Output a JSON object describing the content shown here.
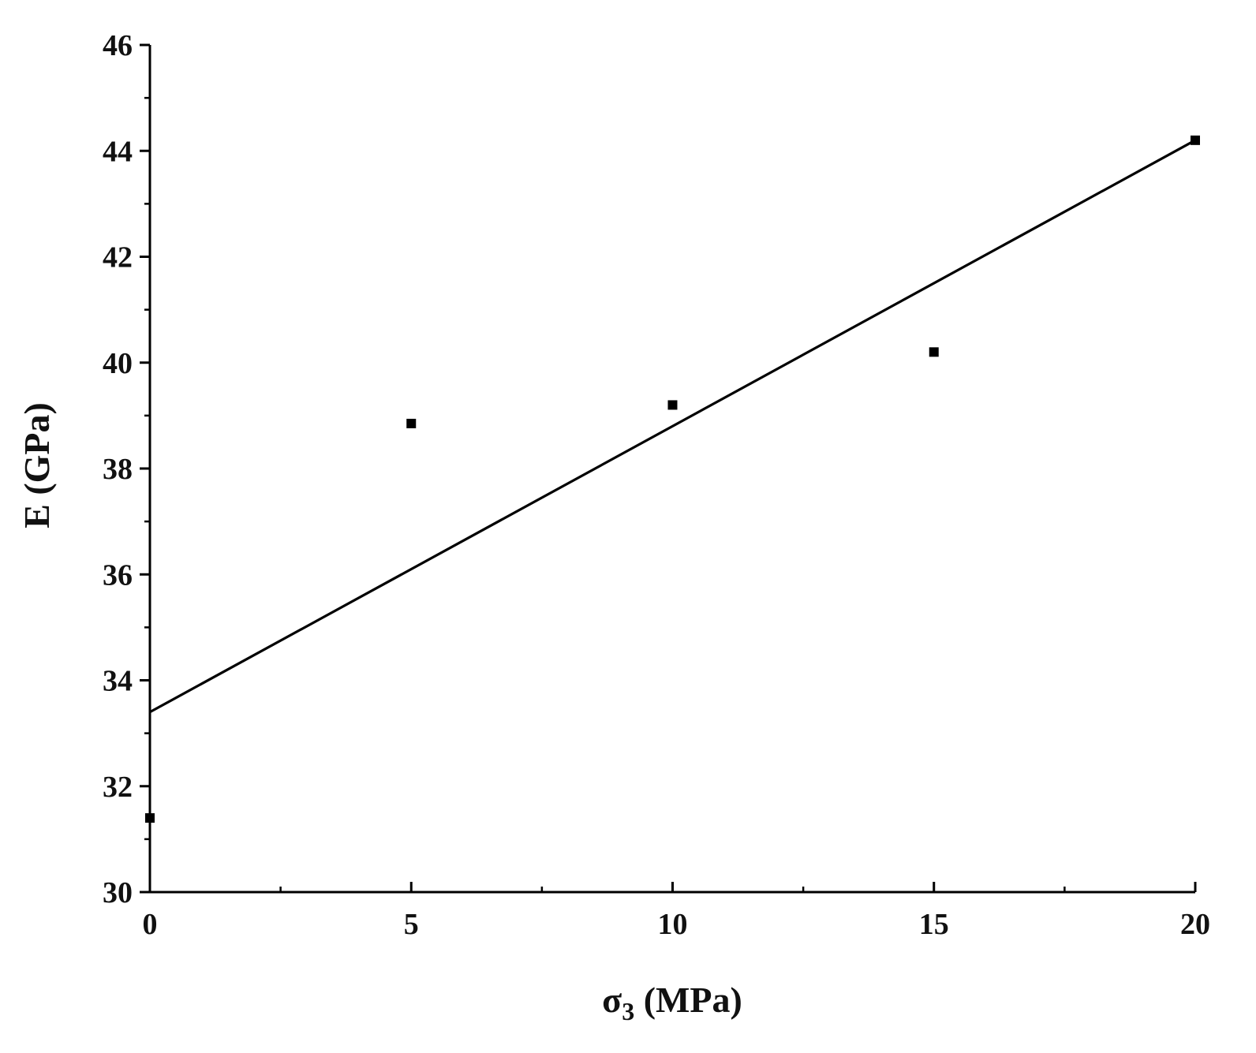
{
  "chart_data": {
    "type": "scatter",
    "title": "",
    "xlabel": {
      "symbol": "σ",
      "subscript": "3",
      "unit": " (MPa)"
    },
    "ylabel": "E (GPa)",
    "xlim": [
      0,
      20
    ],
    "ylim": [
      30,
      46
    ],
    "x_ticks": [
      0,
      5,
      10,
      15,
      20
    ],
    "y_ticks": [
      30,
      32,
      34,
      36,
      38,
      40,
      42,
      44,
      46
    ],
    "x_minor_ticks": [
      2.5,
      7.5,
      12.5,
      17.5
    ],
    "y_minor_ticks": [
      31,
      33,
      35,
      37,
      39,
      41,
      43,
      45
    ],
    "grid": false,
    "series": [
      {
        "points": [
          {
            "x": 0,
            "y": 31.4
          },
          {
            "x": 5,
            "y": 38.85
          },
          {
            "x": 10,
            "y": 39.2
          },
          {
            "x": 15,
            "y": 40.2
          },
          {
            "x": 20,
            "y": 44.2
          }
        ]
      }
    ],
    "fit_line": {
      "x": [
        0,
        20
      ],
      "y": [
        33.4,
        44.2
      ]
    },
    "colors": {
      "marker": "#000000",
      "line": "#000000",
      "axis": "#000000"
    }
  }
}
